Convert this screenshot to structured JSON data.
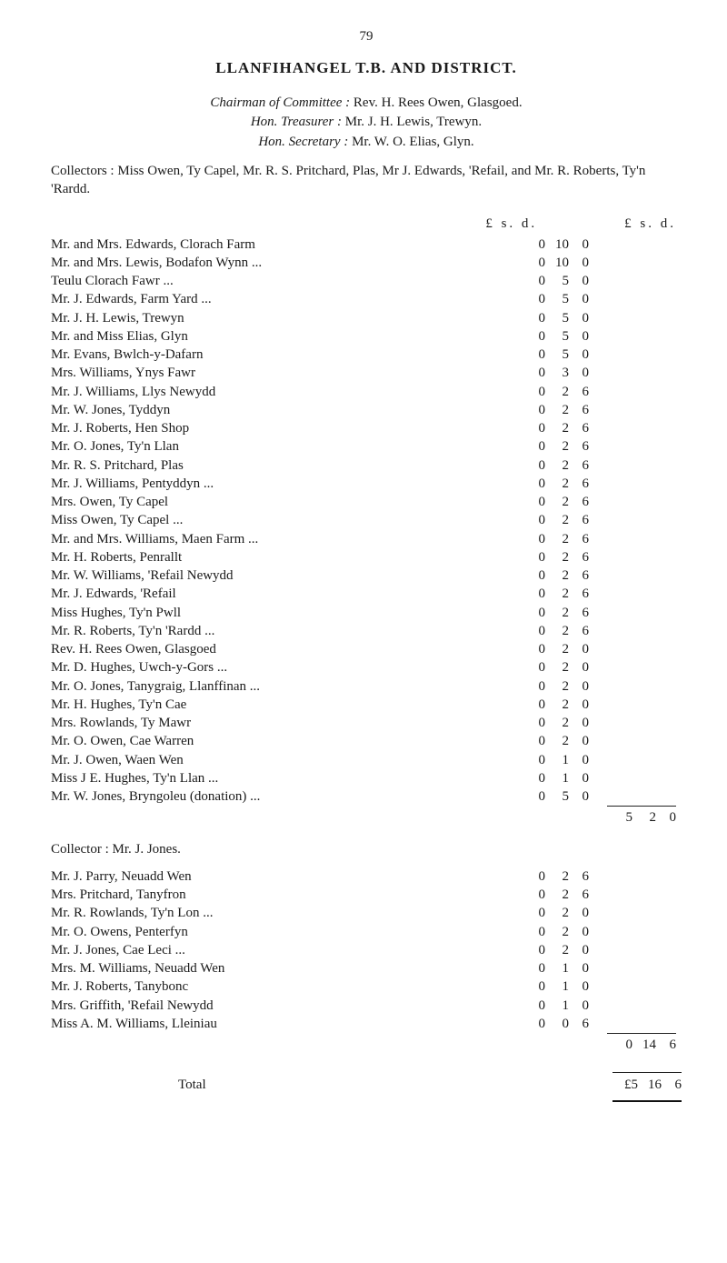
{
  "page_number": "79",
  "title": "LLANFIHANGEL T.B. AND DISTRICT.",
  "officers": {
    "chairman_label": "Chairman of Committee :",
    "chairman_name": "Rev. H. Rees Owen, Glasgoed.",
    "treasurer_label": "Hon. Treasurer :",
    "treasurer_name": "Mr. J. H. Lewis, Trewyn.",
    "secretary_label": "Hon. Secretary :",
    "secretary_name": "Mr. W. O. Elias, Glyn."
  },
  "collectors_text": "Collectors : Miss Owen, Ty Capel, Mr. R. S. Pritchard, Plas, Mr J. Edwards, 'Refail, and Mr. R. Roberts, Ty'n 'Rardd.",
  "currency_header_left": "£  s. d.",
  "currency_header_right": "£  s. d.",
  "section1": {
    "entries": [
      {
        "label": "Mr. and Mrs. Edwards, Clorach Farm",
        "l": "0",
        "s": "10",
        "d": "0"
      },
      {
        "label": "Mr. and Mrs. Lewis, Bodafon Wynn ...",
        "l": "0",
        "s": "10",
        "d": "0"
      },
      {
        "label": "Teulu Clorach Fawr ...",
        "l": "0",
        "s": "5",
        "d": "0"
      },
      {
        "label": "Mr. J. Edwards, Farm Yard ...",
        "l": "0",
        "s": "5",
        "d": "0"
      },
      {
        "label": "Mr. J. H. Lewis, Trewyn",
        "l": "0",
        "s": "5",
        "d": "0"
      },
      {
        "label": "Mr. and Miss Elias, Glyn",
        "l": "0",
        "s": "5",
        "d": "0"
      },
      {
        "label": "Mr. Evans, Bwlch-y-Dafarn",
        "l": "0",
        "s": "5",
        "d": "0"
      },
      {
        "label": "Mrs. Williams, Ynys Fawr",
        "l": "0",
        "s": "3",
        "d": "0"
      },
      {
        "label": "Mr. J. Williams, Llys Newydd",
        "l": "0",
        "s": "2",
        "d": "6"
      },
      {
        "label": "Mr. W. Jones, Tyddyn",
        "l": "0",
        "s": "2",
        "d": "6"
      },
      {
        "label": "Mr. J. Roberts, Hen Shop",
        "l": "0",
        "s": "2",
        "d": "6"
      },
      {
        "label": "Mr. O. Jones, Ty'n Llan",
        "l": "0",
        "s": "2",
        "d": "6"
      },
      {
        "label": "Mr. R. S. Pritchard, Plas",
        "l": "0",
        "s": "2",
        "d": "6"
      },
      {
        "label": "Mr. J. Williams, Pentyddyn ...",
        "l": "0",
        "s": "2",
        "d": "6"
      },
      {
        "label": "Mrs. Owen, Ty Capel",
        "l": "0",
        "s": "2",
        "d": "6"
      },
      {
        "label": "Miss Owen, Ty Capel ...",
        "l": "0",
        "s": "2",
        "d": "6"
      },
      {
        "label": "Mr. and Mrs. Williams, Maen Farm ...",
        "l": "0",
        "s": "2",
        "d": "6"
      },
      {
        "label": "Mr. H. Roberts, Penrallt",
        "l": "0",
        "s": "2",
        "d": "6"
      },
      {
        "label": "Mr. W. Williams, 'Refail Newydd",
        "l": "0",
        "s": "2",
        "d": "6"
      },
      {
        "label": "Mr. J. Edwards, 'Refail",
        "l": "0",
        "s": "2",
        "d": "6"
      },
      {
        "label": "Miss Hughes, Ty'n Pwll",
        "l": "0",
        "s": "2",
        "d": "6"
      },
      {
        "label": "Mr. R. Roberts, Ty'n 'Rardd ...",
        "l": "0",
        "s": "2",
        "d": "6"
      },
      {
        "label": "Rev. H. Rees Owen, Glasgoed",
        "l": "0",
        "s": "2",
        "d": "0"
      },
      {
        "label": "Mr. D. Hughes, Uwch-y-Gors ...",
        "l": "0",
        "s": "2",
        "d": "0"
      },
      {
        "label": "Mr. O. Jones, Tanygraig, Llanffinan ...",
        "l": "0",
        "s": "2",
        "d": "0"
      },
      {
        "label": "Mr. H. Hughes, Ty'n Cae",
        "l": "0",
        "s": "2",
        "d": "0"
      },
      {
        "label": "Mrs. Rowlands, Ty Mawr",
        "l": "0",
        "s": "2",
        "d": "0"
      },
      {
        "label": "Mr. O. Owen, Cae Warren",
        "l": "0",
        "s": "2",
        "d": "0"
      },
      {
        "label": "Mr. J. Owen, Waen Wen",
        "l": "0",
        "s": "1",
        "d": "0"
      },
      {
        "label": "Miss J E. Hughes, Ty'n Llan ...",
        "l": "0",
        "s": "1",
        "d": "0"
      },
      {
        "label": "Mr. W. Jones, Bryngoleu (donation) ...",
        "l": "0",
        "s": "5",
        "d": "0"
      }
    ],
    "subtotal": {
      "l": "5",
      "s": "2",
      "d": "0"
    }
  },
  "collector_line": "Collector : Mr. J. Jones.",
  "section2": {
    "entries": [
      {
        "label": "Mr. J. Parry, Neuadd Wen",
        "l": "0",
        "s": "2",
        "d": "6"
      },
      {
        "label": "Mrs. Pritchard, Tanyfron",
        "l": "0",
        "s": "2",
        "d": "6"
      },
      {
        "label": "Mr. R. Rowlands, Ty'n Lon ...",
        "l": "0",
        "s": "2",
        "d": "0"
      },
      {
        "label": "Mr. O. Owens, Penterfyn",
        "l": "0",
        "s": "2",
        "d": "0"
      },
      {
        "label": "Mr. J. Jones, Cae Leci ...",
        "l": "0",
        "s": "2",
        "d": "0"
      },
      {
        "label": "Mrs. M. Williams, Neuadd Wen",
        "l": "0",
        "s": "1",
        "d": "0"
      },
      {
        "label": "Mr. J. Roberts, Tanybonc",
        "l": "0",
        "s": "1",
        "d": "0"
      },
      {
        "label": "Mrs. Griffith, 'Refail Newydd",
        "l": "0",
        "s": "1",
        "d": "0"
      },
      {
        "label": "Miss A. M. Williams, Lleiniau",
        "l": "0",
        "s": "0",
        "d": "6"
      }
    ],
    "subtotal": {
      "l": "0",
      "s": "14",
      "d": "6"
    }
  },
  "total_label": "Total",
  "grand_total": {
    "l": "£5",
    "s": "16",
    "d": "6"
  }
}
